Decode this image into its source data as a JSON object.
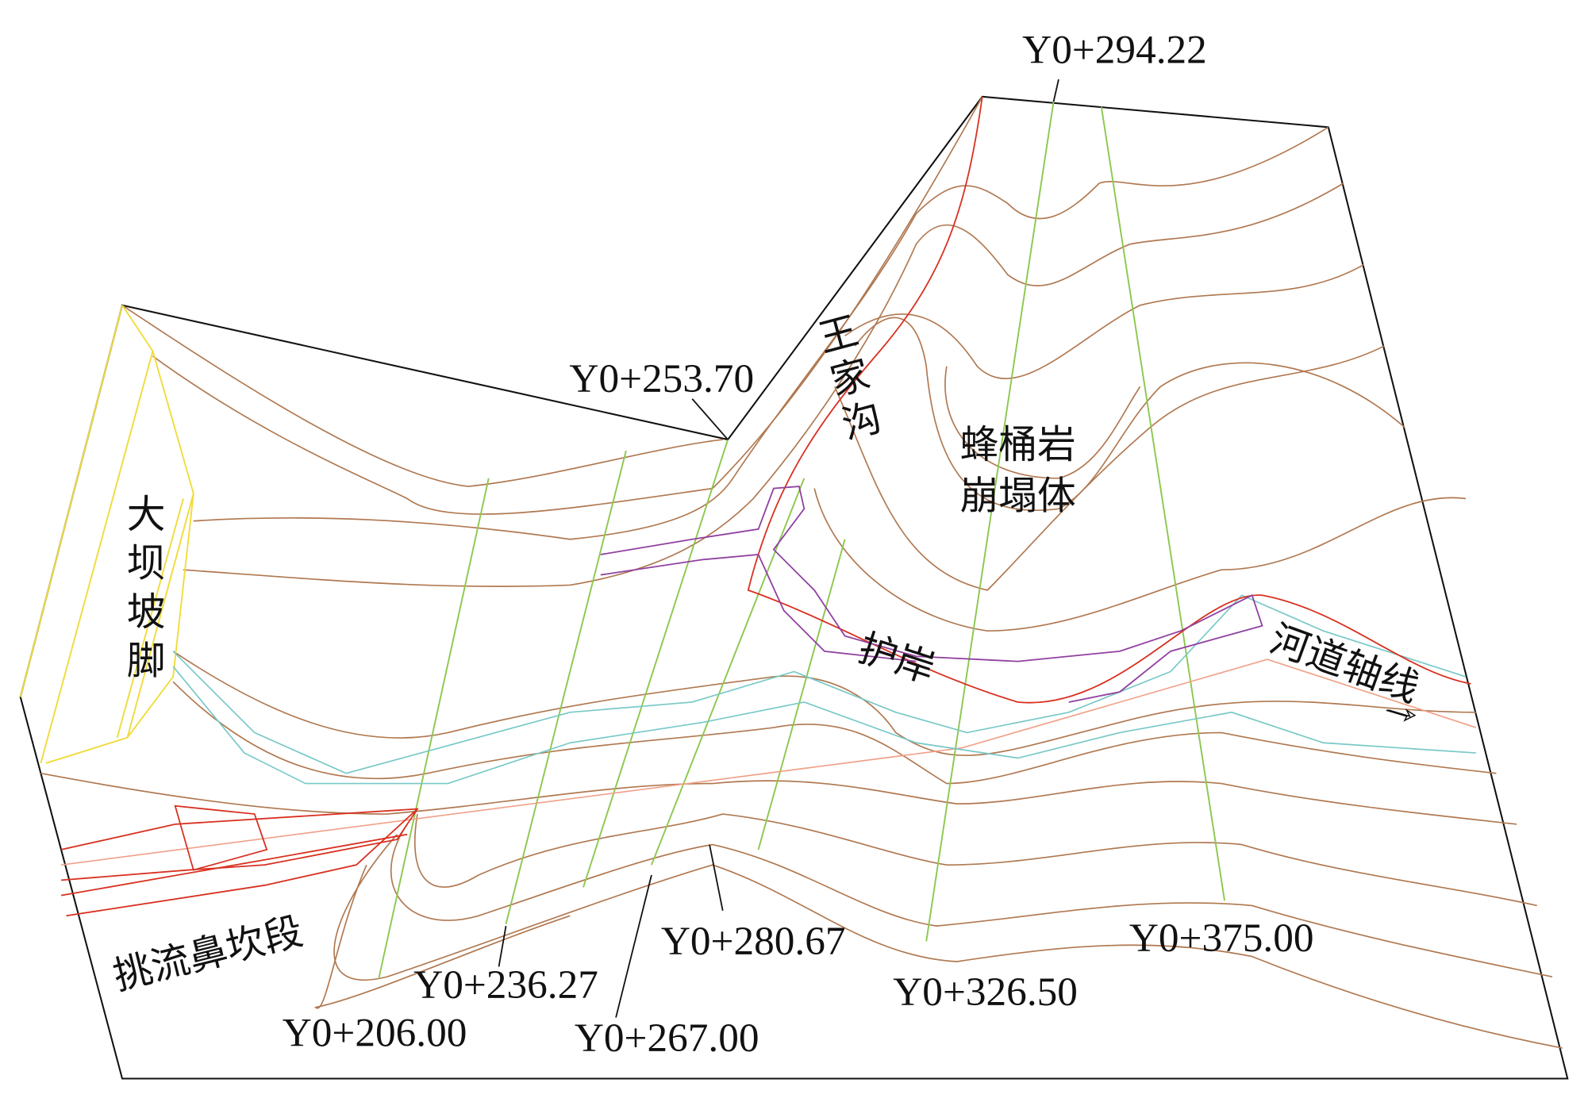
{
  "stations": [
    "Y0+294.22",
    "Y0+253.70",
    "Y0+206.00",
    "Y0+236.27",
    "Y0+267.00",
    "Y0+280.67",
    "Y0+326.50",
    "Y0+375.00"
  ],
  "labels": {
    "dam_toe": "大坝坡脚",
    "gully": "王家沟",
    "collapse": [
      "蜂桶岩",
      "崩塌体"
    ],
    "revetment": "护岸",
    "river_axis": "河道轴线",
    "ski_jump": "挑流鼻坎段"
  }
}
